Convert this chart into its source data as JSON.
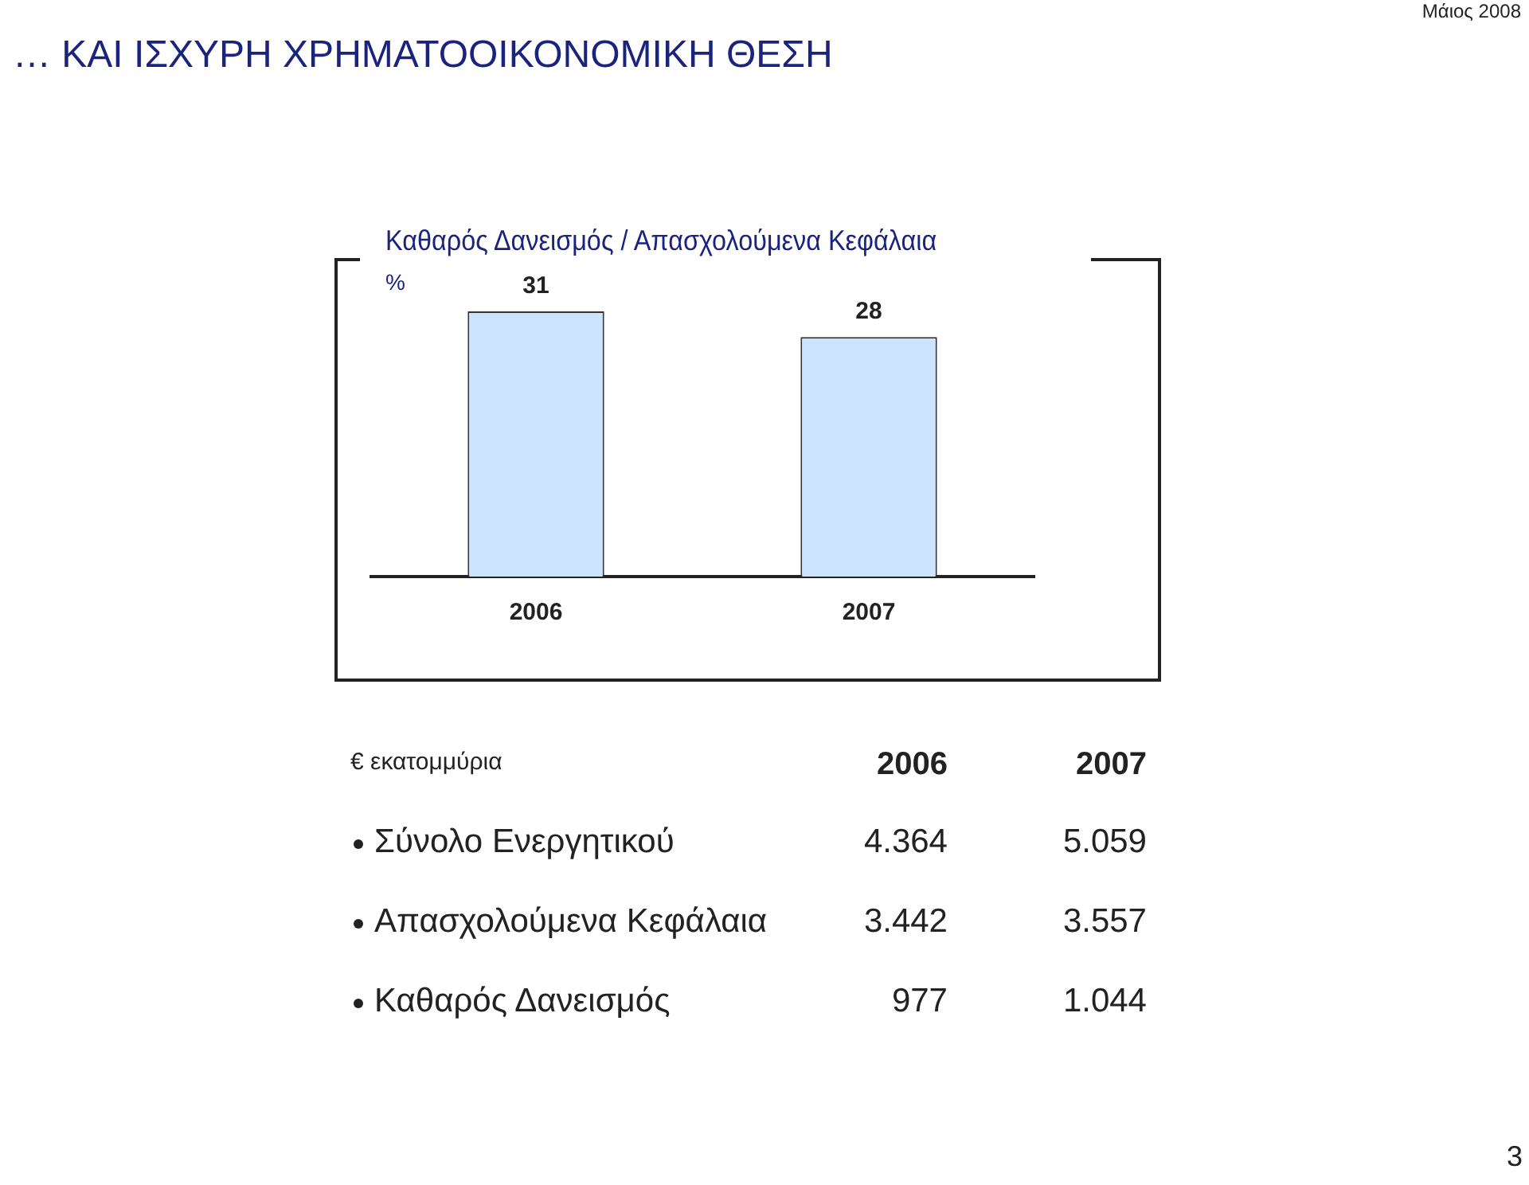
{
  "chart_data": [
    {
      "type": "bar",
      "title": "Καθαρός Δανεισμός / Απασχολούμενα Κεφάλαια",
      "ylabel": "%",
      "categories": [
        "2006",
        "2007"
      ],
      "values": [
        31,
        28
      ],
      "color": "#cce4ff",
      "data_labels": true,
      "tick_labels": "x",
      "grid": false,
      "legend": false
    },
    {
      "type": "other",
      "title": "€ εκατομμύρια",
      "categories": [
        "2006",
        "2007"
      ],
      "y_categories": [
        "Σύνολο Ενεργητικού",
        "Απασχολούμενα Κεφάλαια",
        "Καθαρός Δανεισμός"
      ],
      "cell_labels": [
        [
          "4.364",
          "5.059"
        ],
        [
          "3.442",
          "3.557"
        ],
        [
          "977",
          "1.044"
        ]
      ],
      "annotations": [
        "… ΚΑΙ ΙΣΧΥΡΗ ΧΡΗΜΑΤΟΟΙΚΟΝΟΜΙΚΗ ΘΕΣΗ",
        "Μάιος 2008",
        "3"
      ]
    }
  ]
}
